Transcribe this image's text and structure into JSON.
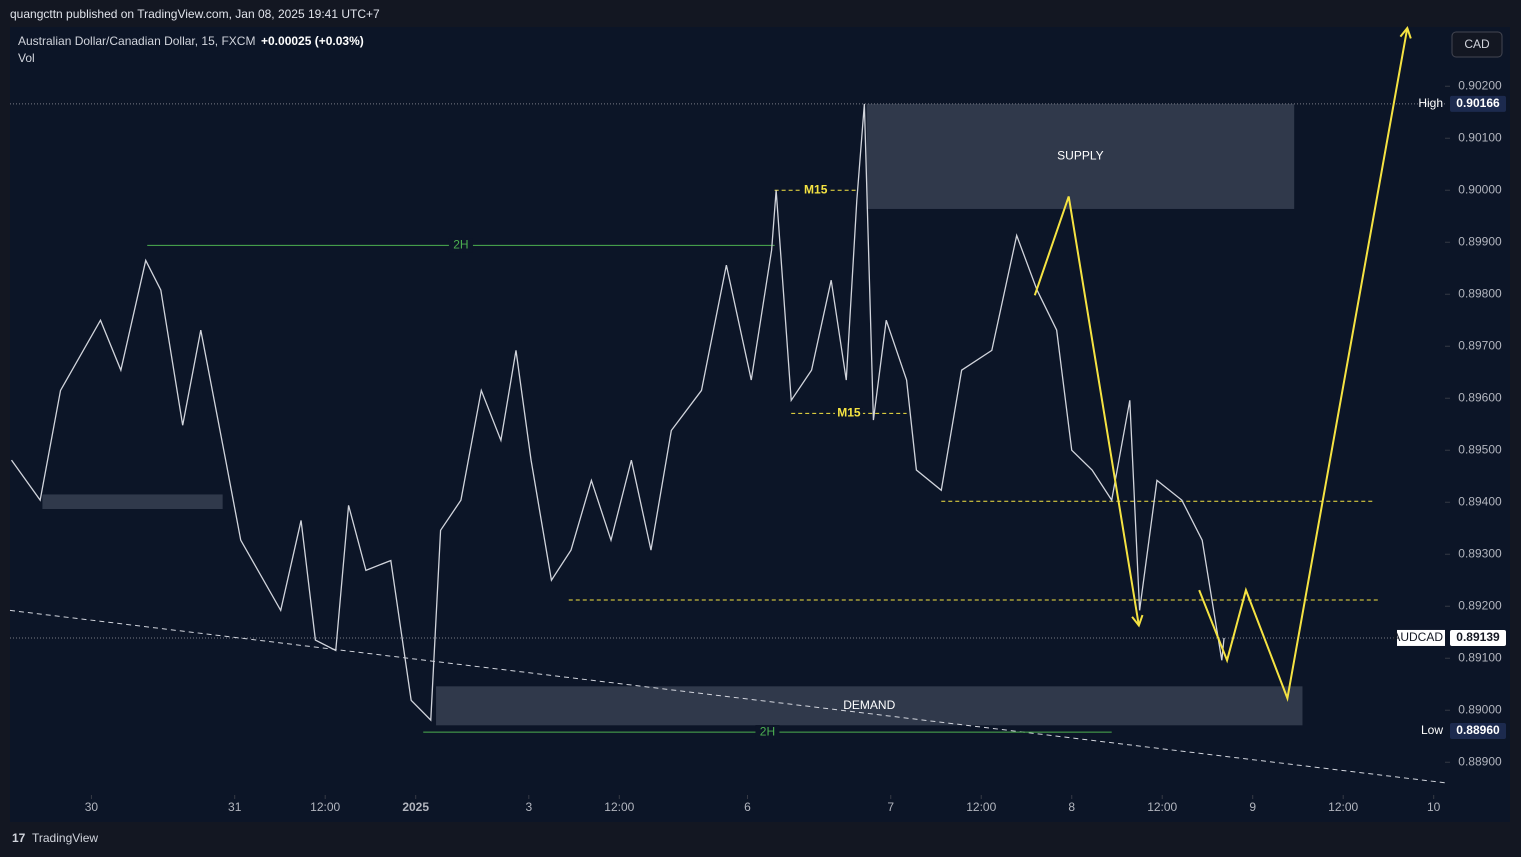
{
  "header": {
    "publisher": "quangcttn published on TradingView.com, Jan 08, 2025 19:41 UTC+7",
    "footer": "TradingView"
  },
  "chart_data": {
    "type": "line",
    "title": "Australian Dollar/Canadian Dollar, 15, FXCM",
    "change": "+0.00025 (+0.03%)",
    "volume_label": "Vol",
    "currency": "CAD",
    "x": [
      -10.6,
      -6.8,
      -4.1,
      1.2,
      3.9,
      7.2,
      9.2,
      12.1,
      14.5,
      17.8,
      19.8,
      25.1,
      27.8,
      29.7,
      32.4,
      34.1,
      36.4,
      39.7,
      42.4,
      45.0,
      46.3,
      49.0,
      51.7,
      54.3,
      56.3,
      58.3,
      61.0,
      63.6,
      66.3,
      68.9,
      71.6,
      74.2,
      76.9,
      80.9,
      84.2,
      87.5,
      90.2,
      90.8,
      92.8,
      95.5,
      98.1,
      100.1,
      101.5,
      102.5,
      103.7,
      105.4,
      108.1,
      109.4,
      112.7,
      115.4,
      119.4,
      122.7,
      125.4,
      128.0,
      130.0,
      132.7,
      135.3,
      137.7,
      139.0,
      141.3,
      144.6,
      147.3,
      149.9,
      150.2
    ],
    "series": [
      {
        "name": "AUDCAD",
        "color": "#d1d4dc",
        "values": [
          0.89481,
          0.89404,
          0.89615,
          0.8975,
          0.89654,
          0.89865,
          0.89808,
          0.89548,
          0.89731,
          0.89481,
          0.89327,
          0.89192,
          0.89365,
          0.89135,
          0.89115,
          0.89394,
          0.89269,
          0.89288,
          0.89019,
          0.88981,
          0.89346,
          0.89404,
          0.89615,
          0.89519,
          0.89692,
          0.89481,
          0.8925,
          0.89308,
          0.89442,
          0.89327,
          0.89481,
          0.89308,
          0.89538,
          0.89615,
          0.89856,
          0.89635,
          0.89885,
          0.9,
          0.89596,
          0.89654,
          0.89827,
          0.89635,
          0.89981,
          0.90166,
          0.89558,
          0.8975,
          0.89635,
          0.89462,
          0.89423,
          0.89654,
          0.89692,
          0.89913,
          0.89808,
          0.89731,
          0.895,
          0.89462,
          0.89404,
          0.89596,
          0.89192,
          0.89442,
          0.89404,
          0.89327,
          0.89096,
          0.89139
        ]
      }
    ],
    "xlim": [
      -10.8,
      179.5
    ],
    "xticks": [
      {
        "value": 0,
        "label": "30"
      },
      {
        "value": 19,
        "label": "31"
      },
      {
        "value": 31,
        "label": "12:00"
      },
      {
        "value": 43,
        "label": "2025"
      },
      {
        "value": 58,
        "label": "3"
      },
      {
        "value": 70,
        "label": "12:00"
      },
      {
        "value": 87,
        "label": "6"
      },
      {
        "value": 106,
        "label": "7"
      },
      {
        "value": 118,
        "label": "12:00"
      },
      {
        "value": 130,
        "label": "8"
      },
      {
        "value": 142,
        "label": "12:00"
      },
      {
        "value": 154,
        "label": "9"
      },
      {
        "value": 166,
        "label": "12:00"
      },
      {
        "value": 178,
        "label": "10"
      }
    ],
    "ylim": [
      0.88837,
      0.90312
    ],
    "yticks": [
      {
        "value": 0.889,
        "label": "0.88900"
      },
      {
        "value": 0.89,
        "label": "0.89000"
      },
      {
        "value": 0.891,
        "label": "0.89100"
      },
      {
        "value": 0.892,
        "label": "0.89200"
      },
      {
        "value": 0.893,
        "label": "0.89300"
      },
      {
        "value": 0.894,
        "label": "0.89400"
      },
      {
        "value": 0.895,
        "label": "0.89500"
      },
      {
        "value": 0.896,
        "label": "0.89600"
      },
      {
        "value": 0.897,
        "label": "0.89700"
      },
      {
        "value": 0.898,
        "label": "0.89800"
      },
      {
        "value": 0.899,
        "label": "0.89900"
      },
      {
        "value": 0.9,
        "label": "0.90000"
      },
      {
        "value": 0.901,
        "label": "0.90100"
      },
      {
        "value": 0.902,
        "label": "0.90200"
      }
    ],
    "high": {
      "name": "High",
      "value": 0.90166
    },
    "low": {
      "name": "Low",
      "value": 0.8896,
      "value_label": "0.88960"
    },
    "last": {
      "value": 0.89139
    },
    "zones": [
      {
        "label": "SUPPLY",
        "x": [
          102.8,
          159.5
        ],
        "y": [
          0.89964,
          0.90166
        ]
      },
      {
        "label": "DEMAND",
        "x": [
          45.7,
          160.6
        ],
        "y": [
          0.88971,
          0.89046
        ]
      },
      {
        "x": [
          -6.5,
          17.4
        ],
        "y": [
          0.89387,
          0.89415
        ]
      }
    ],
    "levels": [
      {
        "label": "2H",
        "x": [
          7.4,
          90.6
        ],
        "y": 0.89894,
        "color": "#4caf50"
      },
      {
        "label": "2H",
        "x": [
          44,
          135.3
        ],
        "y": 0.88958,
        "color": "#4caf50"
      },
      {
        "label": "M15",
        "x": [
          90.6,
          101.5
        ],
        "y": 0.9,
        "color": "#f5e342"
      },
      {
        "label": "M15",
        "x": [
          92.8,
          108.1
        ],
        "y": 0.89571,
        "color": "#f5e342"
      },
      {
        "x": [
          112.7,
          170.1
        ],
        "y": 0.89402,
        "color": "#f5e342"
      },
      {
        "x": [
          63.3,
          170.8
        ],
        "y": 0.89212,
        "color": "#f5e342"
      }
    ],
    "trendline": {
      "x": [
        -10.8,
        179.8
      ],
      "y": [
        0.89192,
        0.8886
      ]
    },
    "projection": [
      {
        "x": [
          125.1,
          129.6,
          138.9
        ],
        "y": [
          0.89798,
          0.89988,
          0.89163
        ]
      },
      {
        "x": [
          146.9,
          150.6,
          153.1,
          158.6,
          174.5
        ],
        "y": [
          0.89231,
          0.89096,
          0.89231,
          0.89023,
          0.90312
        ]
      }
    ],
    "projection_color": "#f5e342"
  }
}
